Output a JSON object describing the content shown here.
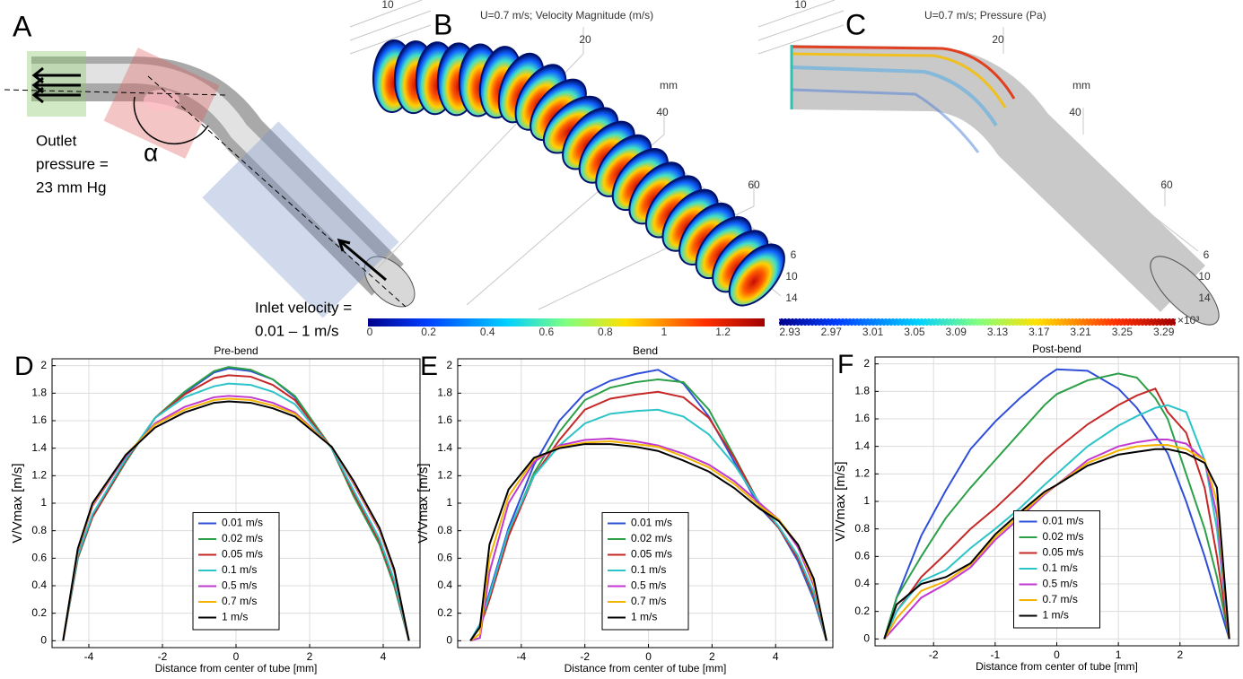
{
  "panels": {
    "A": {
      "label": "A",
      "outlet": [
        "Outlet",
        "pressure =",
        "23 mm Hg"
      ],
      "alpha": "α",
      "inlet": [
        "Inlet velocity =",
        "0.01 – 1 m/s"
      ]
    },
    "B": {
      "label": "B",
      "title": "U=0.7 m/s; Velocity Magnitude (m/s)",
      "axis_labels": [
        "10",
        "20",
        "mm",
        "40",
        "60",
        "6",
        "10",
        "14"
      ],
      "colorbar_ticks": [
        "0",
        "0.2",
        "0.4",
        "0.6",
        "0.8",
        "1",
        "1.2"
      ]
    },
    "C": {
      "label": "C",
      "title": "U=0.7 m/s; Pressure (Pa)",
      "axis_labels": [
        "10",
        "20",
        "mm",
        "40",
        "60",
        "6",
        "10",
        "14"
      ],
      "colorbar_ticks": [
        "2.93",
        "2.97",
        "3.01",
        "3.05",
        "3.09",
        "3.13",
        "3.17",
        "3.21",
        "3.25",
        "3.29"
      ],
      "colorbar_multiplier": "×10³"
    }
  },
  "chart_data": [
    {
      "type": "line",
      "panel": "D",
      "title": "Pre-bend",
      "xlabel": "Distance from center of tube [mm]",
      "ylabel": "V/Vmax [m/s]",
      "xlim": [
        -5,
        5
      ],
      "ylim": [
        -0.05,
        2.05
      ],
      "xticks": [
        -4,
        -2,
        0,
        2,
        4
      ],
      "yticks": [
        0,
        0.2,
        0.4,
        0.6,
        0.8,
        1,
        1.2,
        1.4,
        1.6,
        1.8,
        2
      ],
      "grid": true,
      "legend": "lower center",
      "x": [
        -4.7,
        -4.3,
        -3.9,
        -3,
        -2.2,
        -1.4,
        -0.6,
        -0.2,
        0.4,
        1,
        1.6,
        2.6,
        3.2,
        3.9,
        4.3,
        4.7
      ],
      "series": [
        {
          "name": "0.01 m/s",
          "color": "#2f4fd8",
          "values": [
            0,
            0.6,
            0.9,
            1.3,
            1.62,
            1.8,
            1.95,
            1.98,
            1.96,
            1.9,
            1.77,
            1.4,
            1.05,
            0.7,
            0.4,
            0
          ]
        },
        {
          "name": "0.02 m/s",
          "color": "#2ca048",
          "values": [
            0,
            0.6,
            0.9,
            1.3,
            1.62,
            1.81,
            1.96,
            1.99,
            1.97,
            1.9,
            1.78,
            1.4,
            1.05,
            0.7,
            0.4,
            0
          ]
        },
        {
          "name": "0.05 m/s",
          "color": "#c62828",
          "values": [
            0,
            0.61,
            0.9,
            1.31,
            1.62,
            1.79,
            1.91,
            1.93,
            1.92,
            1.86,
            1.75,
            1.4,
            1.07,
            0.72,
            0.42,
            0
          ]
        },
        {
          "name": "0.1 m/s",
          "color": "#2cc4c8",
          "values": [
            0,
            0.62,
            0.92,
            1.32,
            1.62,
            1.77,
            1.85,
            1.87,
            1.86,
            1.81,
            1.72,
            1.4,
            1.09,
            0.74,
            0.44,
            0
          ]
        },
        {
          "name": "0.5 m/s",
          "color": "#c03ad0",
          "values": [
            0,
            0.65,
            0.98,
            1.34,
            1.58,
            1.7,
            1.77,
            1.78,
            1.77,
            1.73,
            1.66,
            1.41,
            1.14,
            0.8,
            0.5,
            0
          ]
        },
        {
          "name": "0.7 m/s",
          "color": "#f2b400",
          "values": [
            0,
            0.66,
            0.99,
            1.35,
            1.57,
            1.68,
            1.75,
            1.76,
            1.75,
            1.71,
            1.65,
            1.41,
            1.15,
            0.81,
            0.51,
            0
          ]
        },
        {
          "name": "1 m/s",
          "color": "#000000",
          "values": [
            0,
            0.67,
            1,
            1.35,
            1.55,
            1.66,
            1.73,
            1.74,
            1.73,
            1.69,
            1.63,
            1.41,
            1.16,
            0.82,
            0.52,
            0
          ]
        }
      ]
    },
    {
      "type": "line",
      "panel": "E",
      "title": "Bend",
      "xlabel": "Distance from center of tube [mm]",
      "ylabel": "V/Vmax [m/s]",
      "xlim": [
        -6,
        5.8
      ],
      "ylim": [
        -0.05,
        2.05
      ],
      "xticks": [
        -4,
        -2,
        0,
        2,
        4
      ],
      "yticks": [
        0,
        0.2,
        0.4,
        0.6,
        0.8,
        1,
        1.2,
        1.4,
        1.6,
        1.8,
        2
      ],
      "grid": true,
      "legend": "lower center",
      "x": [
        -5.6,
        -5.3,
        -5,
        -4.4,
        -3.6,
        -2.8,
        -2,
        -1.2,
        -0.4,
        0.3,
        1.1,
        1.9,
        2.7,
        3.5,
        4.1,
        4.7,
        5.2,
        5.6
      ],
      "series": [
        {
          "name": "0.01 m/s",
          "color": "#2f4fd8",
          "values": [
            0,
            0.12,
            0.35,
            0.82,
            1.28,
            1.6,
            1.8,
            1.89,
            1.94,
            1.97,
            1.87,
            1.63,
            1.3,
            0.97,
            0.82,
            0.58,
            0.3,
            0
          ]
        },
        {
          "name": "0.02 m/s",
          "color": "#2ca048",
          "values": [
            0,
            0.1,
            0.3,
            0.78,
            1.22,
            1.52,
            1.75,
            1.84,
            1.88,
            1.9,
            1.88,
            1.68,
            1.34,
            0.99,
            0.82,
            0.6,
            0.32,
            0
          ]
        },
        {
          "name": "0.05 m/s",
          "color": "#c62828",
          "values": [
            0,
            0.1,
            0.3,
            0.76,
            1.2,
            1.46,
            1.68,
            1.76,
            1.79,
            1.81,
            1.77,
            1.62,
            1.33,
            0.99,
            0.82,
            0.6,
            0.33,
            0
          ]
        },
        {
          "name": "0.1 m/s",
          "color": "#2cc4c8",
          "values": [
            0,
            0.12,
            0.33,
            0.8,
            1.2,
            1.42,
            1.58,
            1.65,
            1.67,
            1.68,
            1.63,
            1.5,
            1.28,
            1,
            0.83,
            0.62,
            0.35,
            0
          ]
        },
        {
          "name": "0.5 m/s",
          "color": "#c03ad0",
          "values": [
            0,
            0.02,
            0.5,
            1,
            1.3,
            1.42,
            1.46,
            1.47,
            1.45,
            1.42,
            1.36,
            1.28,
            1.16,
            1,
            0.88,
            0.68,
            0.4,
            0
          ]
        },
        {
          "name": "0.7 m/s",
          "color": "#f2b400",
          "values": [
            0,
            0.05,
            0.6,
            1.05,
            1.32,
            1.41,
            1.44,
            1.45,
            1.43,
            1.41,
            1.34,
            1.26,
            1.14,
            0.98,
            0.88,
            0.7,
            0.42,
            0
          ]
        },
        {
          "name": "1 m/s",
          "color": "#000000",
          "values": [
            0,
            0.1,
            0.7,
            1.1,
            1.33,
            1.4,
            1.43,
            1.43,
            1.41,
            1.38,
            1.31,
            1.23,
            1.11,
            0.96,
            0.87,
            0.7,
            0.45,
            0
          ]
        }
      ]
    },
    {
      "type": "line",
      "panel": "F",
      "title": "Post-bend",
      "xlabel": "Distance from center of tube [mm]",
      "ylabel": "V/Vmax [m/s]",
      "xlim": [
        -2.95,
        2.95
      ],
      "ylim": [
        -0.05,
        2.05
      ],
      "xticks": [
        -2,
        -1,
        0,
        1,
        2
      ],
      "yticks": [
        0,
        0.2,
        0.4,
        0.6,
        0.8,
        1,
        1.2,
        1.4,
        1.6,
        1.8,
        2
      ],
      "grid": true,
      "legend": "lower center",
      "x": [
        -2.8,
        -2.6,
        -2.2,
        -1.8,
        -1.4,
        -1,
        -0.6,
        -0.2,
        0,
        0.5,
        1,
        1.3,
        1.6,
        1.8,
        2.1,
        2.4,
        2.6,
        2.8
      ],
      "series": [
        {
          "name": "0.01 m/s",
          "color": "#2f4fd8",
          "values": [
            0,
            0.3,
            0.75,
            1.08,
            1.38,
            1.58,
            1.75,
            1.9,
            1.96,
            1.95,
            1.82,
            1.68,
            1.48,
            1.35,
            1,
            0.6,
            0.3,
            0
          ]
        },
        {
          "name": "0.02 m/s",
          "color": "#2ca048",
          "values": [
            0,
            0.3,
            0.6,
            0.88,
            1.1,
            1.3,
            1.5,
            1.7,
            1.78,
            1.88,
            1.93,
            1.9,
            1.75,
            1.6,
            1.2,
            0.8,
            0.45,
            0
          ]
        },
        {
          "name": "0.05 m/s",
          "color": "#c62828",
          "values": [
            0,
            0.2,
            0.45,
            0.62,
            0.8,
            0.95,
            1.12,
            1.3,
            1.38,
            1.56,
            1.7,
            1.77,
            1.82,
            1.65,
            1.5,
            1.1,
            0.6,
            0
          ]
        },
        {
          "name": "0.1 m/s",
          "color": "#2cc4c8",
          "values": [
            0,
            0.2,
            0.42,
            0.5,
            0.66,
            0.8,
            0.95,
            1.12,
            1.2,
            1.4,
            1.55,
            1.62,
            1.68,
            1.7,
            1.65,
            1.3,
            0.8,
            0
          ]
        },
        {
          "name": "0.5 m/s",
          "color": "#c03ad0",
          "values": [
            0,
            0.1,
            0.3,
            0.4,
            0.52,
            0.72,
            0.88,
            1.05,
            1.12,
            1.3,
            1.4,
            1.43,
            1.45,
            1.45,
            1.42,
            1.3,
            0.9,
            0
          ]
        },
        {
          "name": "0.7 m/s",
          "color": "#f2b400",
          "values": [
            0,
            0.15,
            0.35,
            0.42,
            0.54,
            0.74,
            0.9,
            1.06,
            1.12,
            1.28,
            1.37,
            1.4,
            1.41,
            1.41,
            1.38,
            1.3,
            1,
            0
          ]
        },
        {
          "name": "1 m/s",
          "color": "#000000",
          "values": [
            0,
            0.25,
            0.4,
            0.45,
            0.55,
            0.76,
            0.92,
            1.07,
            1.12,
            1.26,
            1.34,
            1.36,
            1.38,
            1.38,
            1.35,
            1.28,
            1.1,
            0
          ]
        }
      ]
    }
  ]
}
